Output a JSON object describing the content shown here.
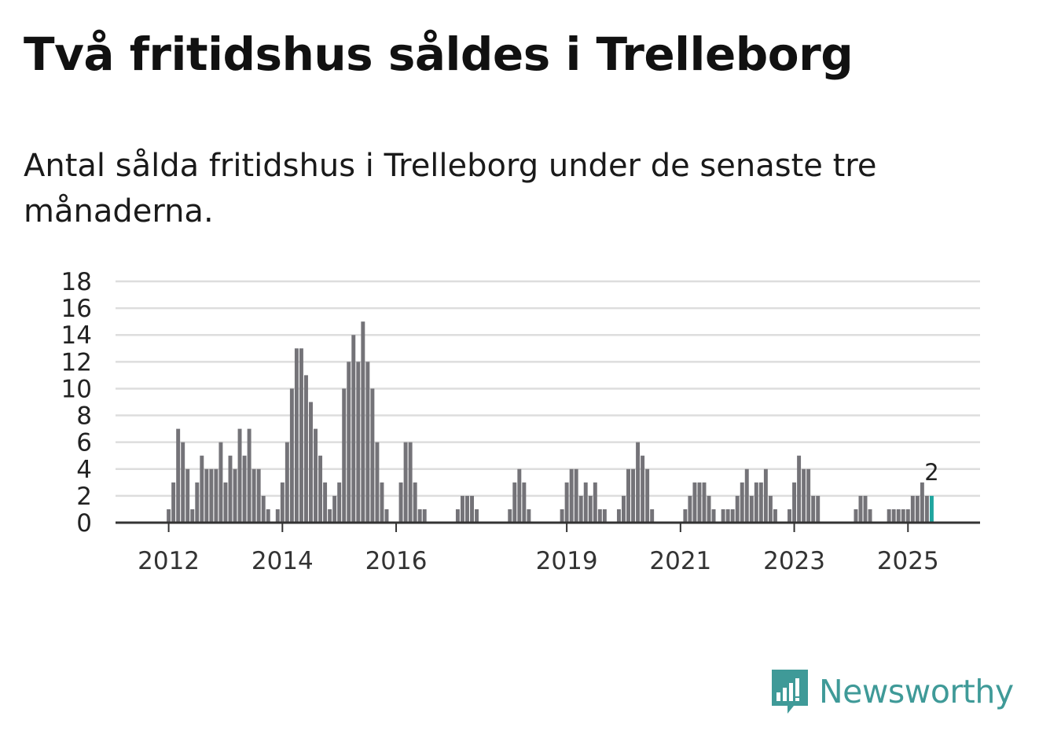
{
  "title": "Två fritidshus såldes i Trelleborg",
  "subtitle": "Antal sålda fritidshus i Trelleborg under de senaste tre månaderna.",
  "brand": {
    "name": "Newsworthy",
    "color": "#3f9a98"
  },
  "colors": {
    "bar": "#747378",
    "highlight": "#1fa59f",
    "grid": "#dddddd",
    "axis": "#333333"
  },
  "chart_data": {
    "type": "bar",
    "title": "Två fritidshus såldes i Trelleborg",
    "subtitle": "Antal sålda fritidshus i Trelleborg under de senaste tre månaderna.",
    "ylim": [
      0,
      18
    ],
    "yticks": [
      0,
      2,
      4,
      6,
      8,
      10,
      12,
      14,
      16,
      18
    ],
    "xticks": [
      2012,
      2014,
      2016,
      2019,
      2021,
      2023,
      2025
    ],
    "grid": true,
    "start": "2011-03",
    "frequency": "monthly",
    "values": [
      0,
      0,
      0,
      0,
      0,
      0,
      0,
      0,
      0,
      0,
      1,
      3,
      7,
      6,
      4,
      1,
      3,
      5,
      4,
      4,
      4,
      6,
      3,
      5,
      4,
      7,
      5,
      7,
      4,
      4,
      2,
      1,
      0,
      1,
      3,
      6,
      10,
      13,
      13,
      11,
      9,
      7,
      5,
      3,
      1,
      2,
      3,
      10,
      12,
      14,
      12,
      15,
      12,
      10,
      6,
      3,
      1,
      0,
      0,
      3,
      6,
      6,
      3,
      1,
      1,
      0,
      0,
      0,
      0,
      0,
      0,
      1,
      2,
      2,
      2,
      1,
      0,
      0,
      0,
      0,
      0,
      0,
      1,
      3,
      4,
      3,
      1,
      0,
      0,
      0,
      0,
      0,
      0,
      1,
      3,
      4,
      4,
      2,
      3,
      2,
      3,
      1,
      1,
      0,
      0,
      1,
      2,
      4,
      4,
      6,
      5,
      4,
      1,
      0,
      0,
      0,
      0,
      0,
      0,
      1,
      2,
      3,
      3,
      3,
      2,
      1,
      0,
      1,
      1,
      1,
      2,
      3,
      4,
      2,
      3,
      3,
      4,
      2,
      1,
      0,
      0,
      1,
      3,
      5,
      4,
      4,
      2,
      2,
      0,
      0,
      0,
      0,
      0,
      0,
      0,
      1,
      2,
      2,
      1,
      0,
      0,
      0,
      1,
      1,
      1,
      1,
      1,
      2,
      2,
      3,
      2,
      2
    ],
    "highlight_last": true,
    "annotation": "2"
  }
}
